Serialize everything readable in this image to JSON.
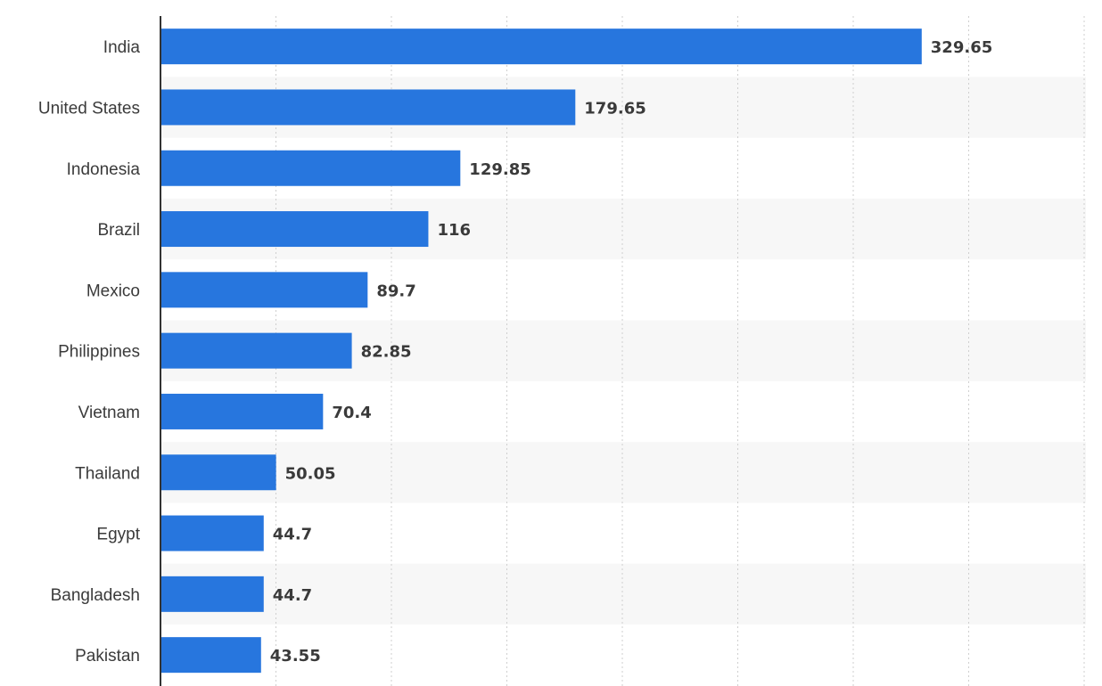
{
  "chart_data": {
    "type": "bar",
    "orientation": "horizontal",
    "categories": [
      "India",
      "United States",
      "Indonesia",
      "Brazil",
      "Mexico",
      "Philippines",
      "Vietnam",
      "Thailand",
      "Egypt",
      "Bangladesh",
      "Pakistan"
    ],
    "values": [
      329.65,
      179.65,
      129.85,
      116,
      89.7,
      82.85,
      70.4,
      50.05,
      44.7,
      44.7,
      43.55
    ],
    "value_labels": [
      "329.65",
      "179.65",
      "129.85",
      "116",
      "89.7",
      "82.85",
      "70.4",
      "50.05",
      "44.7",
      "44.7",
      "43.55"
    ],
    "xlim": [
      0,
      400
    ],
    "grid": true,
    "bar_color": "#2776de",
    "band_color": "#f7f7f7",
    "axis_color": "#333333"
  }
}
